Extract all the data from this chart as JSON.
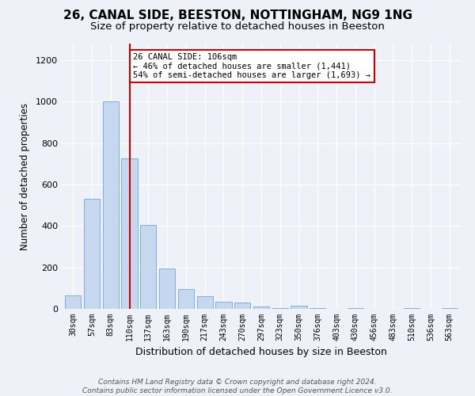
{
  "title": "26, CANAL SIDE, BEESTON, NOTTINGHAM, NG9 1NG",
  "subtitle": "Size of property relative to detached houses in Beeston",
  "xlabel": "Distribution of detached houses by size in Beeston",
  "ylabel": "Number of detached properties",
  "bar_labels": [
    "30sqm",
    "57sqm",
    "83sqm",
    "110sqm",
    "137sqm",
    "163sqm",
    "190sqm",
    "217sqm",
    "243sqm",
    "270sqm",
    "297sqm",
    "323sqm",
    "350sqm",
    "376sqm",
    "403sqm",
    "430sqm",
    "456sqm",
    "483sqm",
    "510sqm",
    "536sqm",
    "563sqm"
  ],
  "bar_values": [
    65,
    530,
    1000,
    725,
    405,
    195,
    95,
    60,
    35,
    30,
    10,
    5,
    15,
    5,
    0,
    5,
    0,
    0,
    5,
    0,
    5
  ],
  "bar_color": "#c5d8f0",
  "bar_edge_color": "#7fb0d8",
  "vline_x_index": 3,
  "vline_color": "#cc0000",
  "annotation_text": "26 CANAL SIDE: 106sqm\n← 46% of detached houses are smaller (1,441)\n54% of semi-detached houses are larger (1,693) →",
  "annotation_box_edge": "#cc0000",
  "ylim": [
    0,
    1280
  ],
  "yticks": [
    0,
    200,
    400,
    600,
    800,
    1000,
    1200
  ],
  "footer_line1": "Contains HM Land Registry data © Crown copyright and database right 2024.",
  "footer_line2": "Contains public sector information licensed under the Open Government Licence v3.0.",
  "title_fontsize": 11,
  "subtitle_fontsize": 9.5,
  "bg_color": "#eef2f8"
}
